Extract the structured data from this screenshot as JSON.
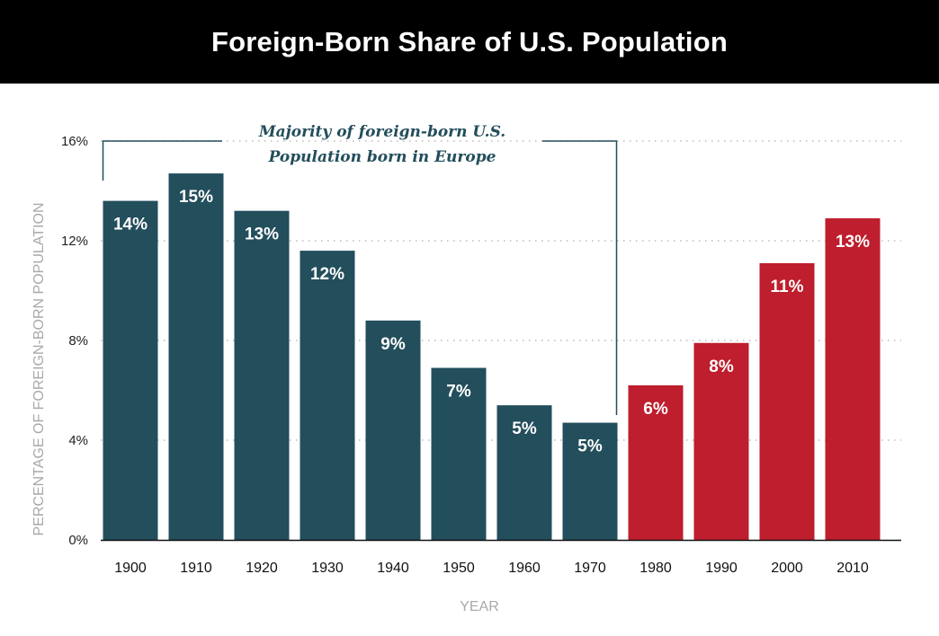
{
  "header": {
    "title": "Foreign-Born Share of U.S. Population"
  },
  "colors": {
    "europe_bar": "#234e5c",
    "recent_bar": "#be1e2d",
    "header_bg": "#000000",
    "annotation": "#234e5c",
    "grid": "#bbbbbb"
  },
  "chart_data": {
    "type": "bar",
    "title": "Foreign-Born Share of U.S. Population",
    "xlabel": "YEAR",
    "ylabel": "PERCENTAGE OF FOREIGN-BORN POPULATION",
    "categories": [
      "1900",
      "1910",
      "1920",
      "1930",
      "1940",
      "1950",
      "1960",
      "1970",
      "1980",
      "1990",
      "2000",
      "2010"
    ],
    "values": [
      13.6,
      14.7,
      13.2,
      11.6,
      8.8,
      6.9,
      5.4,
      4.7,
      6.2,
      7.9,
      11.1,
      12.9
    ],
    "value_labels": [
      "14%",
      "15%",
      "13%",
      "12%",
      "9%",
      "7%",
      "5%",
      "5%",
      "6%",
      "8%",
      "11%",
      "13%"
    ],
    "ylim": [
      0,
      16
    ],
    "yticks": [
      0,
      4,
      8,
      12,
      16
    ],
    "ytick_labels": [
      "0%",
      "4%",
      "8%",
      "12%",
      "16%"
    ],
    "grid": true,
    "annotation": {
      "lines": [
        "Majority of foreign-born U.S.",
        "Population born in Europe"
      ],
      "spans_categories": [
        "1900",
        "1970"
      ]
    },
    "europe_majority_through": "1970"
  }
}
